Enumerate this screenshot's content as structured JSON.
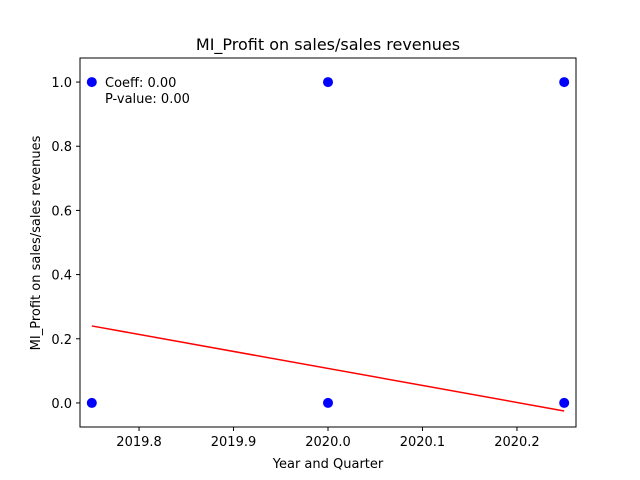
{
  "chart_data": {
    "type": "scatter",
    "title": "MI_Profit on sales/sales revenues",
    "xlabel": "Year and Quarter",
    "ylabel": "MI_Profit on sales/sales revenues",
    "xlim": [
      2019.7375,
      2020.2625
    ],
    "ylim": [
      -0.075,
      1.075
    ],
    "xticks": [
      2019.8,
      2019.9,
      2020.0,
      2020.1,
      2020.2
    ],
    "xtick_labels": [
      "2019.8",
      "2019.9",
      "2020.0",
      "2020.1",
      "2020.2"
    ],
    "yticks": [
      0.0,
      0.2,
      0.4,
      0.6,
      0.8,
      1.0
    ],
    "ytick_labels": [
      "0.0",
      "0.2",
      "0.4",
      "0.6",
      "0.8",
      "1.0"
    ],
    "grid": false,
    "series": [
      {
        "points": [
          {
            "x": 2019.75,
            "y": 1.0
          },
          {
            "x": 2019.75,
            "y": 0.0
          },
          {
            "x": 2020.0,
            "y": 1.0
          },
          {
            "x": 2020.0,
            "y": 0.0
          },
          {
            "x": 2020.25,
            "y": 1.0
          },
          {
            "x": 2020.25,
            "y": 0.0
          }
        ],
        "color": "#0000ff"
      }
    ],
    "regression_line": {
      "x": [
        2019.75,
        2020.25
      ],
      "y": [
        0.24,
        -0.025
      ],
      "color": "#ff0000"
    },
    "annotations": [
      "Coeff: 0.00",
      "P-value: 0.00"
    ]
  }
}
